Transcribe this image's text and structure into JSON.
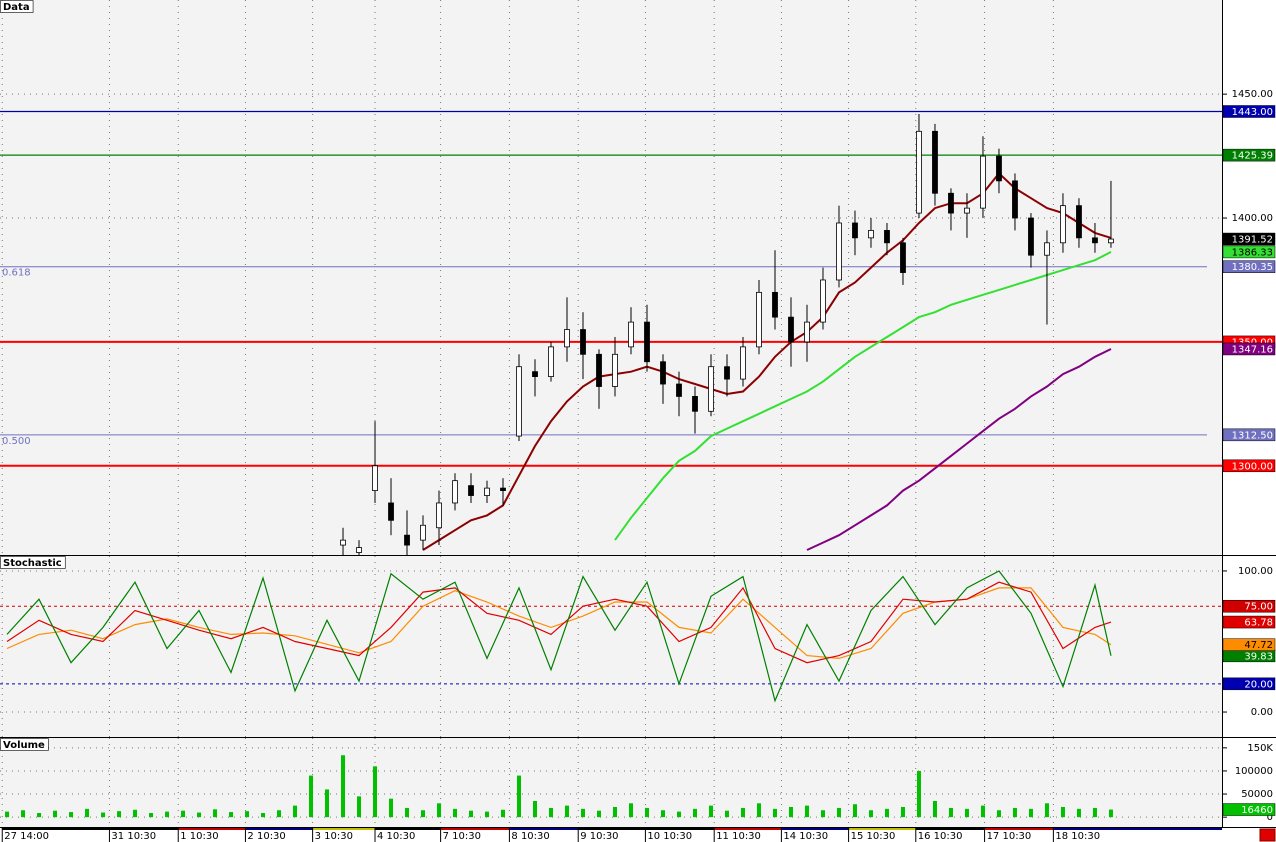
{
  "chart_data": [
    {
      "type": "candlestick",
      "title": "Data",
      "x": [
        0,
        1,
        2,
        3,
        4,
        5,
        6,
        7,
        8,
        9,
        10,
        11,
        12,
        13,
        14,
        15,
        16,
        17,
        18,
        19,
        20,
        21,
        22,
        23,
        24,
        25,
        26,
        27,
        28,
        29,
        30,
        31,
        32,
        33,
        34,
        35,
        36,
        37,
        38,
        39,
        40,
        41,
        42,
        43,
        44,
        45,
        46,
        47,
        48
      ],
      "open": [
        1268,
        1265,
        1290,
        1285,
        1272,
        1270,
        1275,
        1285,
        1292,
        1288,
        1291,
        1312,
        1338,
        1336,
        1348,
        1355,
        1345,
        1332,
        1348,
        1358,
        1342,
        1333,
        1328,
        1322,
        1340,
        1335,
        1348,
        1370,
        1360,
        1350,
        1358,
        1375,
        1398,
        1392,
        1395,
        1390,
        1402,
        1435,
        1410,
        1402,
        1404,
        1425,
        1415,
        1400,
        1385,
        1390,
        1405,
        1392,
        1390
      ],
      "high": [
        1275,
        1270,
        1318,
        1295,
        1282,
        1280,
        1290,
        1297,
        1297,
        1294,
        1295,
        1345,
        1343,
        1350,
        1368,
        1362,
        1347,
        1352,
        1364,
        1365,
        1345,
        1338,
        1332,
        1345,
        1345,
        1352,
        1375,
        1387,
        1368,
        1365,
        1380,
        1405,
        1403,
        1400,
        1398,
        1392,
        1442,
        1438,
        1412,
        1410,
        1433,
        1428,
        1418,
        1402,
        1395,
        1410,
        1408,
        1398,
        1415
      ],
      "low": [
        1264,
        1264,
        1285,
        1272,
        1264,
        1266,
        1268,
        1282,
        1285,
        1285,
        1284,
        1310,
        1328,
        1334,
        1342,
        1335,
        1323,
        1328,
        1345,
        1338,
        1325,
        1320,
        1313,
        1320,
        1328,
        1332,
        1345,
        1355,
        1340,
        1342,
        1355,
        1372,
        1385,
        1388,
        1385,
        1373,
        1400,
        1405,
        1395,
        1392,
        1400,
        1410,
        1395,
        1380,
        1357,
        1386,
        1388,
        1386,
        1388
      ],
      "close": [
        1270,
        1267,
        1300,
        1278,
        1268,
        1276,
        1285,
        1294,
        1288,
        1291,
        1290,
        1340,
        1336,
        1348,
        1355,
        1345,
        1332,
        1345,
        1358,
        1342,
        1333,
        1328,
        1322,
        1340,
        1335,
        1348,
        1370,
        1360,
        1350,
        1358,
        1375,
        1398,
        1392,
        1395,
        1390,
        1378,
        1435,
        1410,
        1402,
        1404,
        1425,
        1415,
        1400,
        1385,
        1390,
        1405,
        1392,
        1390,
        1391.52
      ],
      "up_color": "#ffffff",
      "down_color": "#000000",
      "last_color": "#000000",
      "overlays": [
        {
          "color": "#8b0000",
          "values": [
            null,
            null,
            null,
            null,
            null,
            1266,
            1270,
            1274,
            1278,
            1280,
            1284,
            1296,
            1308,
            1318,
            1326,
            1332,
            1336,
            1337,
            1338,
            1340,
            1338,
            1335,
            1333,
            1331,
            1329,
            1330,
            1336,
            1344,
            1350,
            1354,
            1360,
            1370,
            1374,
            1380,
            1386,
            1391,
            1398,
            1404,
            1406,
            1406,
            1410,
            1418,
            1412,
            1408,
            1404,
            1402,
            1398,
            1394,
            1392
          ]
        },
        {
          "color": "#33e033",
          "values": [
            null,
            null,
            null,
            null,
            null,
            null,
            null,
            null,
            null,
            null,
            null,
            null,
            null,
            null,
            null,
            null,
            null,
            1270,
            1279,
            1287,
            1295,
            1302,
            1306,
            1312,
            1315,
            1318,
            1321,
            1324,
            1327,
            1330,
            1334,
            1339,
            1344,
            1348,
            1352,
            1356,
            1360,
            1362,
            1365,
            1367,
            1369,
            1371,
            1373,
            1375,
            1377,
            1379,
            1381,
            1383,
            1386.33
          ]
        },
        {
          "color": "#800080",
          "values": [
            null,
            null,
            null,
            null,
            null,
            null,
            null,
            null,
            null,
            null,
            null,
            null,
            null,
            null,
            null,
            null,
            null,
            null,
            null,
            null,
            null,
            null,
            null,
            null,
            null,
            null,
            null,
            null,
            null,
            1266,
            1269,
            1272,
            1276,
            1280,
            1284,
            1290,
            1294,
            1299,
            1304,
            1309,
            1314,
            1319,
            1323,
            1328,
            1332,
            1337,
            1340,
            1344,
            1347.16
          ]
        }
      ],
      "levels": [
        {
          "value": 1443,
          "label": "1443.00",
          "color": "#0000b0"
        },
        {
          "value": 1425.39,
          "label": "1425.39",
          "color": "#008000"
        },
        {
          "value": 1350,
          "label": "1350.00",
          "color": "#ff0000"
        },
        {
          "value": 1300,
          "label": "1300.00",
          "color": "#ff0000"
        }
      ],
      "fib_color": "#7070c0",
      "fib": [
        {
          "value": 1380.35,
          "label": "1380.35",
          "ratio": "0.618"
        },
        {
          "value": 1312.5,
          "label": "1312.50",
          "ratio": "0.500"
        }
      ],
      "xlim": [
        -21.44,
        54.94
      ],
      "ylim": [
        1264,
        1488
      ],
      "yticks": [
        {
          "value": 1450,
          "label": "1450.00"
        },
        {
          "value": 1400,
          "label": "1400.00"
        }
      ],
      "grid": true
    },
    {
      "type": "line",
      "title": "Stochastic",
      "x": [
        -21,
        -19,
        -17,
        -15,
        -13,
        -11,
        -9,
        -7,
        -5,
        -3,
        -1,
        1,
        3,
        5,
        7,
        9,
        11,
        13,
        15,
        17,
        19,
        21,
        23,
        25,
        27,
        29,
        31,
        33,
        35,
        37,
        39,
        41,
        43,
        45,
        47,
        48
      ],
      "series": [
        {
          "color": "#008000",
          "values": [
            55,
            80,
            35,
            60,
            92,
            45,
            72,
            28,
            95,
            15,
            65,
            22,
            98,
            80,
            92,
            38,
            88,
            30,
            96,
            58,
            92,
            20,
            82,
            96,
            8,
            62,
            22,
            72,
            96,
            62,
            88,
            100,
            70,
            18,
            90,
            39.83
          ]
        },
        {
          "color": "#e00000",
          "values": [
            50,
            65,
            55,
            50,
            72,
            65,
            58,
            52,
            60,
            50,
            45,
            40,
            60,
            85,
            88,
            70,
            65,
            55,
            75,
            80,
            75,
            50,
            60,
            88,
            45,
            35,
            40,
            50,
            80,
            78,
            80,
            92,
            85,
            45,
            60,
            63.78
          ]
        },
        {
          "color": "#ff8c00",
          "values": [
            45,
            55,
            58,
            52,
            62,
            66,
            60,
            55,
            56,
            54,
            48,
            42,
            50,
            75,
            86,
            78,
            68,
            60,
            68,
            78,
            78,
            60,
            56,
            80,
            60,
            40,
            38,
            45,
            70,
            78,
            80,
            88,
            88,
            60,
            55,
            47.72
          ]
        }
      ],
      "levels": [
        {
          "value": 75,
          "label": "75.00",
          "color": "#d00000"
        },
        {
          "value": 20,
          "label": "20.00",
          "color": "#0000b0"
        }
      ],
      "xlim": [
        -21.44,
        54.94
      ],
      "ylim": [
        -17.7,
        110.6
      ],
      "yticks": [
        {
          "value": 100,
          "label": "100.00"
        },
        {
          "value": 0,
          "label": "0.00"
        }
      ],
      "grid": true
    },
    {
      "type": "bar",
      "title": "Volume",
      "x": [
        -21,
        -20,
        -19,
        -18,
        -17,
        -16,
        -15,
        -14,
        -13,
        -12,
        -11,
        -10,
        -9,
        -8,
        -7,
        -6,
        -5,
        -4,
        -3,
        -2,
        -1,
        0,
        1,
        2,
        3,
        4,
        5,
        6,
        7,
        8,
        9,
        10,
        11,
        12,
        13,
        14,
        15,
        16,
        17,
        18,
        19,
        20,
        21,
        22,
        23,
        24,
        25,
        26,
        27,
        28,
        29,
        30,
        31,
        32,
        33,
        34,
        35,
        36,
        37,
        38,
        39,
        40,
        41,
        42,
        43,
        44,
        45,
        46,
        47,
        48
      ],
      "values": [
        12000,
        15000,
        9000,
        14000,
        11000,
        18000,
        10000,
        13000,
        16000,
        9000,
        12000,
        14000,
        10000,
        17000,
        11000,
        13000,
        9000,
        15000,
        25000,
        90000,
        60000,
        134000,
        45000,
        110000,
        40000,
        20000,
        15000,
        30000,
        18000,
        14000,
        12000,
        16000,
        90000,
        35000,
        20000,
        25000,
        18000,
        14000,
        22000,
        30000,
        20000,
        15000,
        12000,
        18000,
        25000,
        14000,
        20000,
        30000,
        18000,
        22000,
        25000,
        15000,
        20000,
        28000,
        15000,
        18000,
        22000,
        100000,
        35000,
        20000,
        18000,
        25000,
        15000,
        20000,
        18000,
        30000,
        22000,
        18000,
        20000,
        16460
      ],
      "color": "#00c000",
      "xlim": [
        -21.44,
        54.94
      ],
      "ylim": [
        -21300,
        171300
      ],
      "yticks": [
        {
          "value": 150000,
          "label": "150K"
        },
        100000,
        50000,
        0
      ],
      "xticks": [
        {
          "value": -21.3,
          "label": "27 14:00"
        },
        {
          "value": -14.6,
          "label": "31 10:30"
        },
        {
          "value": -10.3,
          "label": "1 10:30"
        },
        {
          "value": -6.1,
          "label": "2 10:30"
        },
        {
          "value": -1.9,
          "label": "3 10:30"
        },
        {
          "value": 2,
          "label": "4 10:30"
        },
        {
          "value": 6.1,
          "label": "7 10:30"
        },
        {
          "value": 10.4,
          "label": "8 10:30"
        },
        {
          "value": 14.7,
          "label": "9 10:30"
        },
        {
          "value": 18.9,
          "label": "10 10:30"
        },
        {
          "value": 23.2,
          "label": "11 10:30"
        },
        {
          "value": 27.4,
          "label": "14 10:30"
        },
        {
          "value": 31.6,
          "label": "15 10:30"
        },
        {
          "value": 35.8,
          "label": "16 10:30"
        },
        {
          "value": 40.1,
          "label": "17 10:30"
        },
        {
          "value": 44.4,
          "label": "18 10:30"
        }
      ],
      "grid": true
    }
  ]
}
